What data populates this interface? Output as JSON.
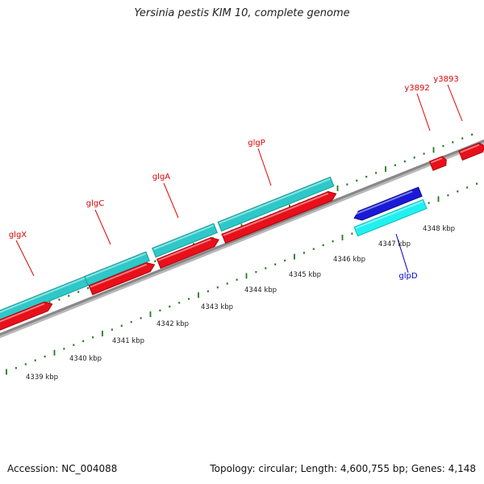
{
  "title": "Yersinia pestis KIM 10, complete genome",
  "footer": {
    "accession": "Accession: NC_004088",
    "summary": "Topology: circular; Length: 4,600,755 bp; Genes: 4,148"
  },
  "ruler_labels": [
    "4339 kbp",
    "4340 kbp",
    "4341 kbp",
    "4342 kbp",
    "4343 kbp",
    "4344 kbp",
    "4345 kbp",
    "4346 kbp",
    "4347 kbp",
    "4348 kbp"
  ],
  "gene_labels": [
    {
      "text": "glgX",
      "color": "#e00000"
    },
    {
      "text": "glgC",
      "color": "#e00000"
    },
    {
      "text": "glgA",
      "color": "#e00000"
    },
    {
      "text": "glgP",
      "color": "#e00000"
    },
    {
      "text": "y3892",
      "color": "#e00000"
    },
    {
      "text": "y3893",
      "color": "#e00000"
    },
    {
      "text": "glpD",
      "color": "#0000cc"
    }
  ],
  "colors": {
    "cds": "#e8101a",
    "cds_dark": "#b00008",
    "cog": "#2ec8c8",
    "cog_dark": "#1a9a9a",
    "cog_light": "#20f0f0",
    "blue_gene": "#1a1ad6",
    "backbone": "#888888",
    "tick": "#1f7a1f"
  }
}
